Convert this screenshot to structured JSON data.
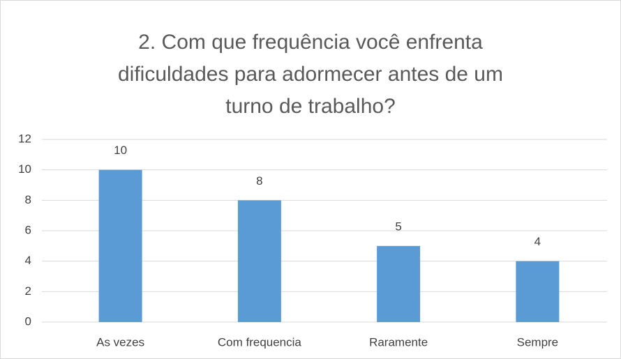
{
  "chart_data": {
    "type": "bar",
    "title": "2. Com que frequência você enfrenta dificuldades para adormecer antes de um turno de trabalho?",
    "categories": [
      "As vezes",
      "Com frequencia",
      "Raramente",
      "Sempre"
    ],
    "values": [
      10,
      8,
      5,
      4
    ],
    "color": "#5b9bd5",
    "ylim": [
      0,
      12
    ],
    "yticks": [
      0,
      2,
      4,
      6,
      8,
      10,
      12
    ],
    "grid": true
  }
}
